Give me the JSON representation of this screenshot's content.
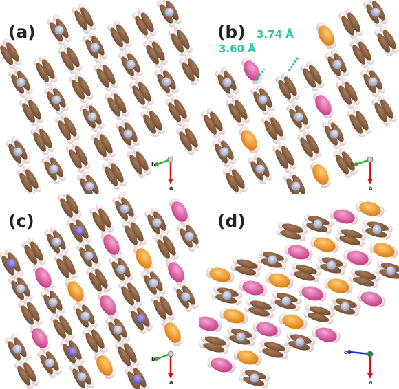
{
  "panels": [
    {
      "label": "(a)",
      "axes": [
        "b",
        "a"
      ]
    },
    {
      "label": "(b)",
      "distances": [
        "3.74 Å",
        "3.60 Å"
      ],
      "axes": [
        "b",
        "a"
      ]
    },
    {
      "label": "(c)",
      "axes": [
        "b",
        "a"
      ]
    },
    {
      "label": "(d)",
      "axes": [
        "c",
        "a"
      ]
    }
  ]
}
